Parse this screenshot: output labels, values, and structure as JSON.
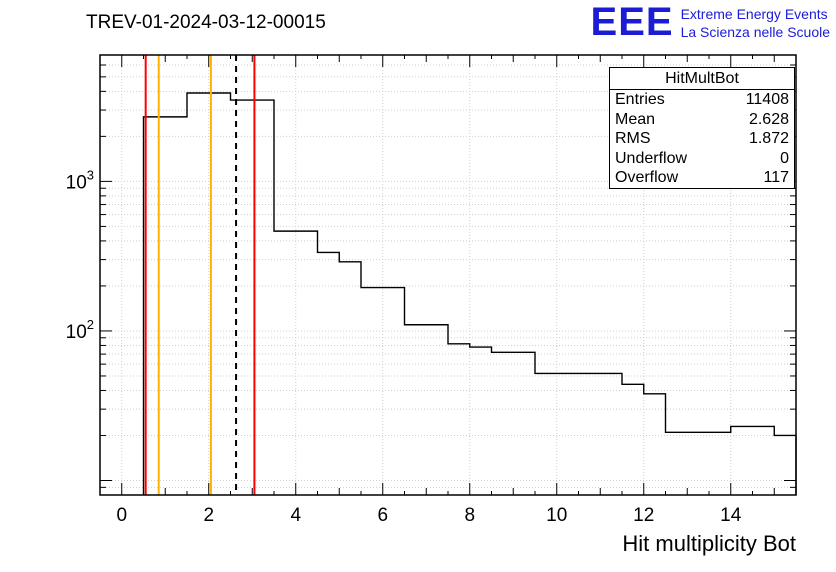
{
  "logo": {
    "eee": "EEE",
    "line1": "Extreme Energy Events",
    "line2": "La Scienza nelle Scuole",
    "color": "#1c1cd6"
  },
  "stats": {
    "title": "HitMultBot",
    "rows": [
      {
        "label": "Entries",
        "value": "11408"
      },
      {
        "label": "Mean",
        "value": "2.628"
      },
      {
        "label": "RMS",
        "value": "1.872"
      },
      {
        "label": "Underflow",
        "value": "0"
      },
      {
        "label": "Overflow",
        "value": "117"
      }
    ]
  },
  "chart_data": {
    "type": "bar",
    "title": "TREV-01-2024-03-12-00015",
    "xlabel": "Hit multiplicity Bot",
    "ylabel": "",
    "yscale": "log",
    "grid": true,
    "legend": "none",
    "xlim": [
      -0.5,
      15.5
    ],
    "ylim": [
      8,
      7000
    ],
    "x_major_ticks": [
      0,
      2,
      4,
      6,
      8,
      10,
      12,
      14
    ],
    "y_tick_labels": [
      {
        "value": 100,
        "base": "10",
        "exp": "2"
      },
      {
        "value": 1000,
        "base": "10",
        "exp": "3"
      }
    ],
    "bins": [
      {
        "x0": 0.5,
        "x1": 1.5,
        "count": 2700
      },
      {
        "x0": 1.5,
        "x1": 2.5,
        "count": 3900
      },
      {
        "x0": 2.5,
        "x1": 3.5,
        "count": 3500
      },
      {
        "x0": 3.5,
        "x1": 4.5,
        "count": 465
      },
      {
        "x0": 4.5,
        "x1": 5.0,
        "count": 335
      },
      {
        "x0": 5.0,
        "x1": 5.5,
        "count": 290
      },
      {
        "x0": 5.5,
        "x1": 6.5,
        "count": 195
      },
      {
        "x0": 6.5,
        "x1": 7.5,
        "count": 110
      },
      {
        "x0": 7.5,
        "x1": 8.0,
        "count": 82
      },
      {
        "x0": 8.0,
        "x1": 8.5,
        "count": 78
      },
      {
        "x0": 8.5,
        "x1": 9.5,
        "count": 72
      },
      {
        "x0": 9.5,
        "x1": 11.5,
        "count": 52
      },
      {
        "x0": 11.5,
        "x1": 12.0,
        "count": 44
      },
      {
        "x0": 12.0,
        "x1": 12.5,
        "count": 38
      },
      {
        "x0": 12.5,
        "x1": 14.0,
        "count": 21
      },
      {
        "x0": 14.0,
        "x1": 15.0,
        "count": 23
      },
      {
        "x0": 15.0,
        "x1": 15.5,
        "count": 20
      }
    ],
    "vlines": [
      {
        "x": 0.55,
        "color": "#ff0000",
        "dash": ""
      },
      {
        "x": 0.85,
        "color": "#ffb300",
        "dash": ""
      },
      {
        "x": 2.05,
        "color": "#ffb300",
        "dash": ""
      },
      {
        "x": 2.628,
        "color": "#000000",
        "dash": "6,5"
      },
      {
        "x": 3.05,
        "color": "#ff0000",
        "dash": ""
      }
    ],
    "colors": {
      "histogram": "#000000",
      "grid": "#cfcfcf"
    }
  }
}
